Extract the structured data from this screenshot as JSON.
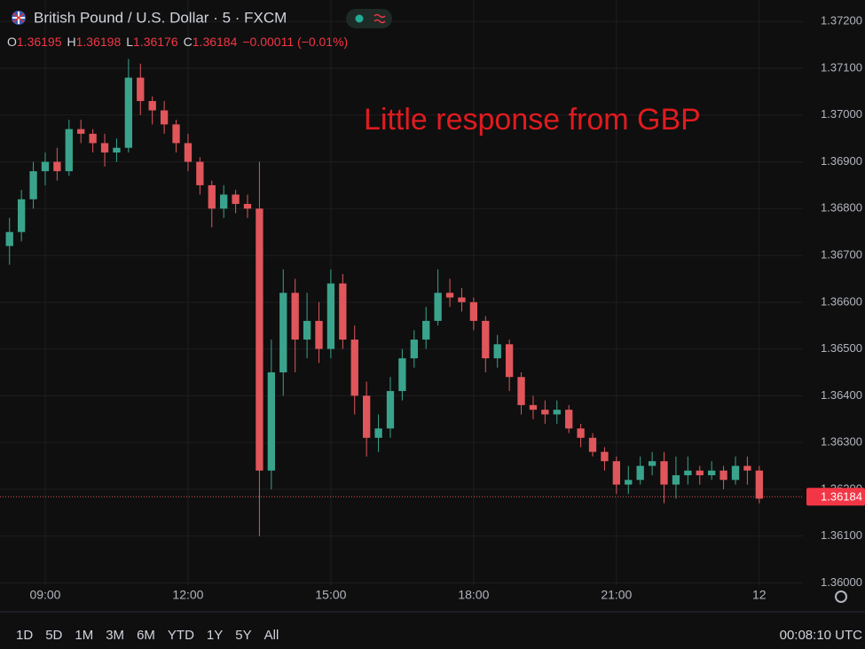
{
  "header": {
    "symbol": "British Pound / U.S. Dollar · 5 · FXCM",
    "ohlc": [
      {
        "label": "O",
        "value": 1.36195
      },
      {
        "label": "H",
        "value": 1.36198
      },
      {
        "label": "L",
        "value": 1.36176
      },
      {
        "label": "C",
        "value": 1.36184
      }
    ],
    "change": "−0.00011 (−0.01%)"
  },
  "chart_data": {
    "type": "candlestick",
    "annotation": "Little response from GBP",
    "up_color": "#3aa38c",
    "down_color": "#e0565b",
    "x": [
      495,
      510,
      525,
      540,
      555,
      570,
      585,
      600,
      615,
      630,
      645,
      660,
      675,
      690,
      705,
      720,
      735,
      750,
      765,
      780,
      795,
      810,
      825,
      840,
      855,
      870,
      885,
      900,
      915,
      930,
      945,
      960,
      975,
      990,
      1005,
      1020,
      1035,
      1050,
      1065,
      1080,
      1095,
      1110,
      1125,
      1140,
      1155,
      1170,
      1185,
      1200,
      1215,
      1230,
      1245,
      1260,
      1275,
      1290,
      1305,
      1320,
      1335,
      1350,
      1365,
      1380,
      1395,
      1410,
      1425,
      1440
    ],
    "open": [
      1.3672,
      1.3675,
      1.3682,
      1.3688,
      1.369,
      1.3688,
      1.3697,
      1.3696,
      1.3694,
      1.3692,
      1.3693,
      1.3708,
      1.3703,
      1.3701,
      1.3698,
      1.3694,
      1.369,
      1.3685,
      1.368,
      1.3683,
      1.3681,
      1.368,
      1.3624,
      1.3645,
      1.3662,
      1.3652,
      1.3656,
      1.365,
      1.3664,
      1.3652,
      1.364,
      1.3631,
      1.3633,
      1.3641,
      1.3648,
      1.3652,
      1.3656,
      1.3662,
      1.3661,
      1.366,
      1.3656,
      1.3648,
      1.3651,
      1.3644,
      1.3638,
      1.3637,
      1.3636,
      1.3637,
      1.3633,
      1.3631,
      1.3628,
      1.3626,
      1.3621,
      1.3622,
      1.3625,
      1.3626,
      1.3621,
      1.3623,
      1.3624,
      1.3623,
      1.3624,
      1.3622,
      1.3625,
      1.3624
    ],
    "high": [
      1.3678,
      1.3684,
      1.369,
      1.3692,
      1.3693,
      1.3699,
      1.3699,
      1.3697,
      1.3696,
      1.3695,
      1.3712,
      1.3711,
      1.3704,
      1.3703,
      1.3699,
      1.3696,
      1.3691,
      1.3686,
      1.3685,
      1.3684,
      1.3683,
      1.369,
      1.3652,
      1.3667,
      1.3665,
      1.3662,
      1.366,
      1.3667,
      1.3666,
      1.3655,
      1.3643,
      1.3636,
      1.3644,
      1.365,
      1.3654,
      1.3659,
      1.3667,
      1.3665,
      1.3663,
      1.3661,
      1.3657,
      1.3653,
      1.3652,
      1.3645,
      1.364,
      1.3639,
      1.3639,
      1.3638,
      1.3634,
      1.3632,
      1.3629,
      1.3627,
      1.3625,
      1.3627,
      1.3628,
      1.3628,
      1.3627,
      1.3627,
      1.3625,
      1.3626,
      1.3625,
      1.3627,
      1.3627,
      1.3625
    ],
    "low": [
      1.3668,
      1.3673,
      1.368,
      1.3685,
      1.3686,
      1.3687,
      1.3694,
      1.3692,
      1.3689,
      1.369,
      1.3692,
      1.37,
      1.3698,
      1.3696,
      1.3692,
      1.3688,
      1.3683,
      1.3676,
      1.3678,
      1.3679,
      1.3678,
      1.361,
      1.362,
      1.364,
      1.3645,
      1.3648,
      1.3647,
      1.3648,
      1.365,
      1.3636,
      1.3627,
      1.3628,
      1.3631,
      1.3639,
      1.3646,
      1.365,
      1.3655,
      1.3659,
      1.3658,
      1.3654,
      1.3645,
      1.3646,
      1.3641,
      1.3636,
      1.3635,
      1.3634,
      1.3634,
      1.3632,
      1.3629,
      1.3627,
      1.3624,
      1.3619,
      1.3619,
      1.3621,
      1.3623,
      1.3617,
      1.3618,
      1.3621,
      1.3621,
      1.3622,
      1.362,
      1.3621,
      1.3621,
      1.3617
    ],
    "close": [
      1.3675,
      1.3682,
      1.3688,
      1.369,
      1.3688,
      1.3697,
      1.3696,
      1.3694,
      1.3692,
      1.3693,
      1.3708,
      1.3703,
      1.3701,
      1.3698,
      1.3694,
      1.369,
      1.3685,
      1.368,
      1.3683,
      1.3681,
      1.368,
      1.3624,
      1.3645,
      1.3662,
      1.3652,
      1.3656,
      1.365,
      1.3664,
      1.3652,
      1.364,
      1.3631,
      1.3633,
      1.3641,
      1.3648,
      1.3652,
      1.3656,
      1.3662,
      1.3661,
      1.366,
      1.3656,
      1.3648,
      1.3651,
      1.3644,
      1.3638,
      1.3637,
      1.3636,
      1.3637,
      1.3633,
      1.3631,
      1.3628,
      1.3626,
      1.3621,
      1.3622,
      1.3625,
      1.3626,
      1.3621,
      1.3623,
      1.3624,
      1.3623,
      1.3624,
      1.3622,
      1.3625,
      1.3624,
      1.3618
    ],
    "xlim": [
      483,
      1495
    ],
    "xticks": [
      {
        "value": 540,
        "label": "09:00"
      },
      {
        "value": 720,
        "label": "12:00"
      },
      {
        "value": 900,
        "label": "15:00"
      },
      {
        "value": 1080,
        "label": "18:00"
      },
      {
        "value": 1260,
        "label": "21:00"
      },
      {
        "value": 1440,
        "label": "12"
      }
    ],
    "ylim": [
      1.35995,
      1.37246
    ],
    "yticks": [
      {
        "value": 1.36,
        "label": "1.36000"
      },
      {
        "value": 1.361,
        "label": "1.36100"
      },
      {
        "value": 1.362,
        "label": "1.36200"
      },
      {
        "value": 1.363,
        "label": "1.36300"
      },
      {
        "value": 1.364,
        "label": "1.36400"
      },
      {
        "value": 1.365,
        "label": "1.36500"
      },
      {
        "value": 1.366,
        "label": "1.36600"
      },
      {
        "value": 1.367,
        "label": "1.36700"
      },
      {
        "value": 1.368,
        "label": "1.36800"
      },
      {
        "value": 1.369,
        "label": "1.36900"
      },
      {
        "value": 1.37,
        "label": "1.37000"
      },
      {
        "value": 1.371,
        "label": "1.37100"
      },
      {
        "value": 1.372,
        "label": "1.37200"
      }
    ],
    "grid": true,
    "last_price": 1.36184
  },
  "toolbar": {
    "ranges": [
      "1D",
      "5D",
      "1M",
      "3M",
      "6M",
      "YTD",
      "1Y",
      "5Y",
      "All"
    ],
    "clock": "00:08:10 UTC"
  }
}
